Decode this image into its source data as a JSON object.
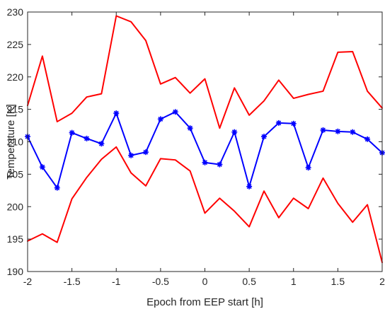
{
  "chart_data": {
    "type": "line",
    "title": "",
    "xlabel": "Epoch from EEP start [h]",
    "ylabel": "Temperature [K]",
    "xlim": [
      -2,
      2
    ],
    "ylim": [
      190,
      230
    ],
    "xticks": [
      -2,
      -1.5,
      -1,
      -0.5,
      0,
      0.5,
      1,
      1.5,
      2
    ],
    "xtick_labels": [
      "-2",
      "-1.5",
      "-1",
      "-0.5",
      "0",
      "0.5",
      "1",
      "1.5",
      "2"
    ],
    "yticks": [
      190,
      195,
      200,
      205,
      210,
      215,
      220,
      225,
      230
    ],
    "ytick_labels": [
      "190",
      "195",
      "200",
      "205",
      "210",
      "215",
      "220",
      "225",
      "230"
    ],
    "grid": false,
    "box": true,
    "x": [
      -2,
      -1.8333,
      -1.6667,
      -1.5,
      -1.3333,
      -1.1667,
      -1,
      -0.8333,
      -0.6667,
      -0.5,
      -0.3333,
      -0.1667,
      0,
      0.1667,
      0.3333,
      0.5,
      0.6667,
      0.8333,
      1,
      1.1667,
      1.3333,
      1.5,
      1.6667,
      1.8333,
      2
    ],
    "series": [
      {
        "color": "#ff0000",
        "marker": "none",
        "values": [
          215.6,
          223.2,
          213.1,
          214.4,
          216.9,
          217.4,
          229.4,
          228.5,
          225.6,
          218.9,
          219.9,
          217.5,
          219.7,
          212.1,
          218.3,
          214.1,
          216.3,
          219.5,
          216.7,
          217.3,
          217.8,
          223.8,
          223.9,
          217.8,
          215.2
        ]
      },
      {
        "color": "#0000ff",
        "marker": "asterisk",
        "values": [
          210.8,
          206.1,
          202.9,
          211.4,
          210.5,
          209.7,
          214.4,
          207.9,
          208.4,
          213.5,
          214.6,
          212.1,
          206.8,
          206.5,
          211.5,
          203.1,
          210.8,
          212.9,
          212.8,
          206.0,
          211.8,
          211.6,
          211.5,
          210.4,
          208.3
        ]
      },
      {
        "color": "#ff0000",
        "marker": "none",
        "values": [
          194.7,
          195.8,
          194.5,
          201.2,
          204.5,
          207.3,
          209.2,
          205.2,
          203.2,
          207.4,
          207.2,
          205.5,
          199.0,
          201.3,
          199.3,
          196.9,
          202.4,
          198.3,
          201.3,
          199.7,
          204.4,
          200.5,
          197.6,
          200.3,
          191.4
        ]
      }
    ]
  }
}
